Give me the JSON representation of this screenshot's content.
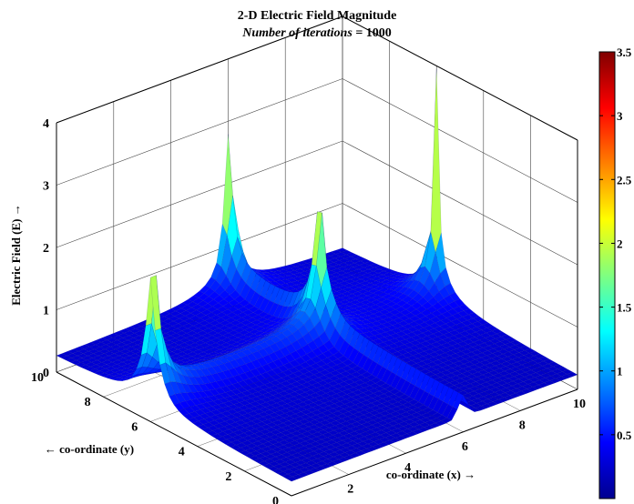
{
  "title": "2-D Electric Field Magnitude",
  "subtitle_italic": "Number of iterations =",
  "subtitle_value": "1000",
  "chart_data": {
    "type": "surface",
    "title": "2-D Electric Field Magnitude",
    "subtitle": "Number of iterations = 1000",
    "xlabel": "co-ordinate (x) →",
    "ylabel": "← co-ordinate (y)",
    "zlabel": "Electric Field (E) →",
    "xlim": [
      0,
      10
    ],
    "ylim": [
      0,
      10
    ],
    "zlim": [
      0,
      4
    ],
    "xticks": [
      "0",
      "2",
      "4",
      "6",
      "8",
      "10"
    ],
    "yticks": [
      "0",
      "2",
      "4",
      "6",
      "8",
      "10"
    ],
    "zticks": [
      "0",
      "1",
      "2",
      "3",
      "4"
    ],
    "grid": true,
    "colormap": "jet",
    "colorbar": {
      "range": [
        0,
        3.5
      ],
      "ticks": [
        "0.5",
        "1",
        "1.5",
        "2",
        "2.5",
        "3",
        "3.5"
      ]
    },
    "features": [
      {
        "name": "conductor edge",
        "axis": "x",
        "at": 6,
        "from_y": 0,
        "to_y": 10,
        "level_approx": 0.35
      },
      {
        "name": "ridge",
        "axis": "y",
        "at": 6,
        "from_x": 0,
        "to_x": 6,
        "level_approx": 0.25
      },
      {
        "name": "peak",
        "x": 6,
        "y": 9.95,
        "z": 3.5
      },
      {
        "name": "peak",
        "x": 6,
        "y": 6.1,
        "z": 3.2
      },
      {
        "name": "peak",
        "x": 0.1,
        "y": 6,
        "z": 4.0
      },
      {
        "name": "peak",
        "x": 10,
        "y": 6,
        "z": 3.9
      }
    ]
  }
}
